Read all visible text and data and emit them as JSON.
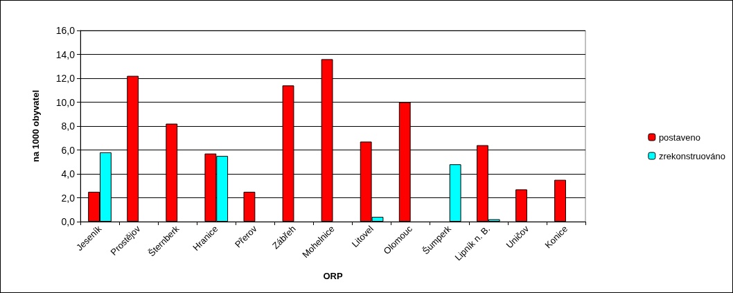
{
  "chart_data": {
    "type": "bar",
    "xlabel": "ORP",
    "ylabel": "na 1000 obyvatel",
    "categories": [
      "Jeseník",
      "Prostějov",
      "Šternberk",
      "Hranice",
      "Přerov",
      "Zábřeh",
      "Mohelnice",
      "Litovel",
      "Olomouc",
      "Šumperk",
      "Lipník n. B.",
      "Uničov",
      "Konice"
    ],
    "series": [
      {
        "name": "postaveno",
        "color": "#ff0000",
        "values": [
          2.5,
          12.2,
          8.2,
          5.7,
          2.5,
          11.4,
          13.6,
          6.7,
          10.0,
          null,
          6.4,
          2.7,
          3.5
        ]
      },
      {
        "name": "zrekonstruováno",
        "color": "#00ffff",
        "values": [
          5.8,
          null,
          null,
          5.5,
          null,
          null,
          null,
          0.4,
          null,
          4.8,
          0.2,
          null,
          null
        ]
      }
    ],
    "ylim": [
      0,
      16
    ],
    "yticks": [
      {
        "value": 0,
        "label": "0,0"
      },
      {
        "value": 2,
        "label": "2,0"
      },
      {
        "value": 4,
        "label": "4,0"
      },
      {
        "value": 6,
        "label": "6,0"
      },
      {
        "value": 8,
        "label": "8,0"
      },
      {
        "value": 10,
        "label": "10,0"
      },
      {
        "value": 12,
        "label": "12,0"
      },
      {
        "value": 14,
        "label": "14,0"
      },
      {
        "value": 16,
        "label": "16,0"
      }
    ],
    "grid": "y",
    "legend": "right"
  }
}
